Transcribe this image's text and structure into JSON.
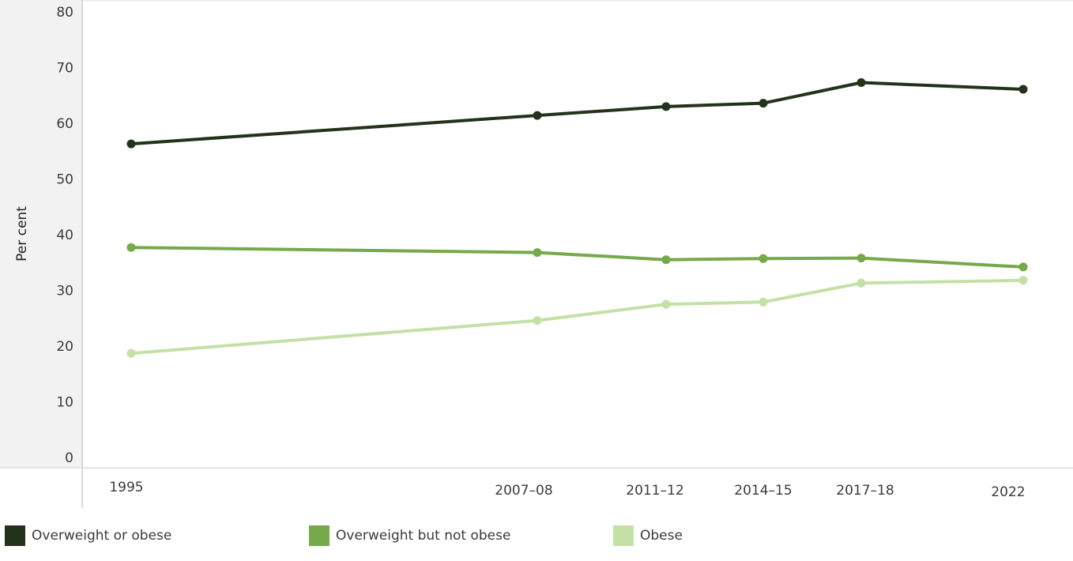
{
  "chart_data": {
    "type": "line",
    "categories": [
      "1995",
      "2007–08",
      "2011–12",
      "2014–15",
      "2017–18",
      "2022"
    ],
    "series": [
      {
        "name": "Overweight or obese",
        "values": [
          56.3,
          61.4,
          63.0,
          63.6,
          67.3,
          66.1
        ],
        "color": "#23321b"
      },
      {
        "name": "Overweight but not obese",
        "values": [
          37.7,
          36.8,
          35.5,
          35.7,
          35.8,
          34.2
        ],
        "color": "#76a84c"
      },
      {
        "name": "Obese",
        "values": [
          18.7,
          24.6,
          27.5,
          27.9,
          31.3,
          31.8
        ],
        "color": "#c4e0a5"
      }
    ],
    "xlabel": "",
    "ylabel": "Per cent",
    "ylim": [
      0,
      80
    ],
    "yticks": [
      0,
      10,
      20,
      30,
      40,
      50,
      60,
      70,
      80
    ],
    "grid": false,
    "legend_position": "bottom"
  }
}
